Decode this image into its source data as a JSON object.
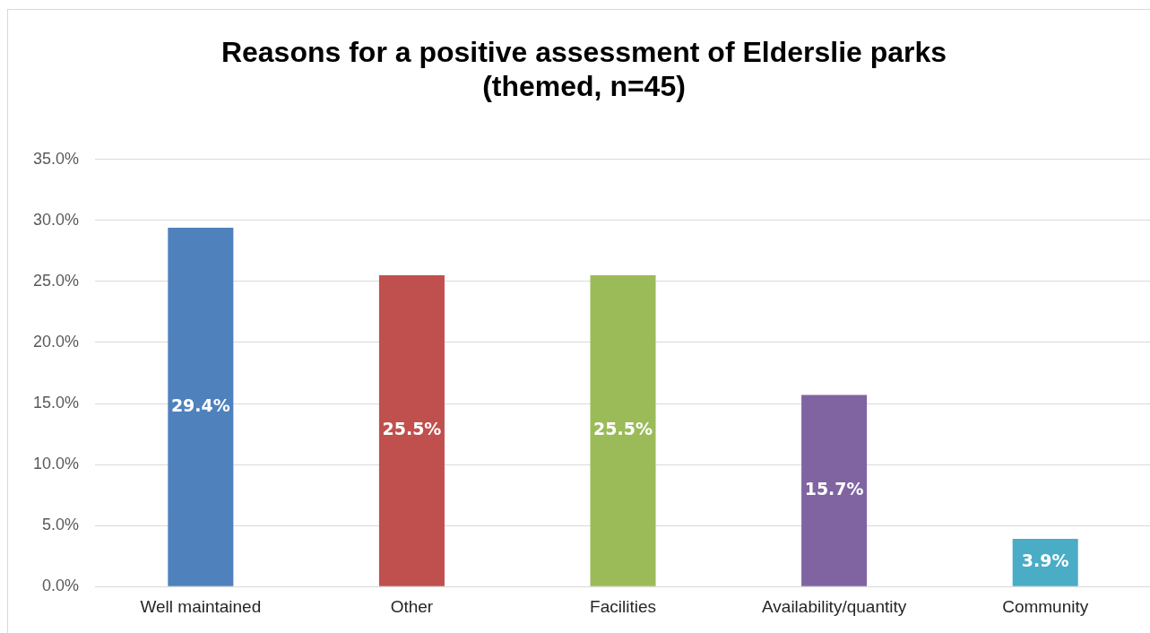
{
  "chart_data": {
    "type": "bar",
    "title": "Reasons for a positive assessment of Elderslie parks\n(themed, n=45)",
    "categories": [
      "Well maintained",
      "Other",
      "Facilities",
      "Availability/quantity",
      "Community"
    ],
    "values": [
      29.4,
      25.5,
      25.5,
      15.7,
      3.9
    ],
    "colors": [
      "#4f81bd",
      "#c0504d",
      "#9bbb59",
      "#8064a2",
      "#4bacc6"
    ],
    "value_labels": [
      "29.4%",
      "25.5%",
      "25.5%",
      "15.7%",
      "3.9%"
    ],
    "ylim": [
      0,
      35
    ],
    "yticks": [
      {
        "value": 0,
        "label": "0.0%"
      },
      {
        "value": 5,
        "label": "5.0%"
      },
      {
        "value": 10,
        "label": "10.0%"
      },
      {
        "value": 15,
        "label": "15.0%"
      },
      {
        "value": 20,
        "label": "20.0%"
      },
      {
        "value": 25,
        "label": "25.0%"
      },
      {
        "value": 30,
        "label": "30.0%"
      },
      {
        "value": 35,
        "label": "35.0%"
      }
    ],
    "grid": "y",
    "legend": false
  }
}
